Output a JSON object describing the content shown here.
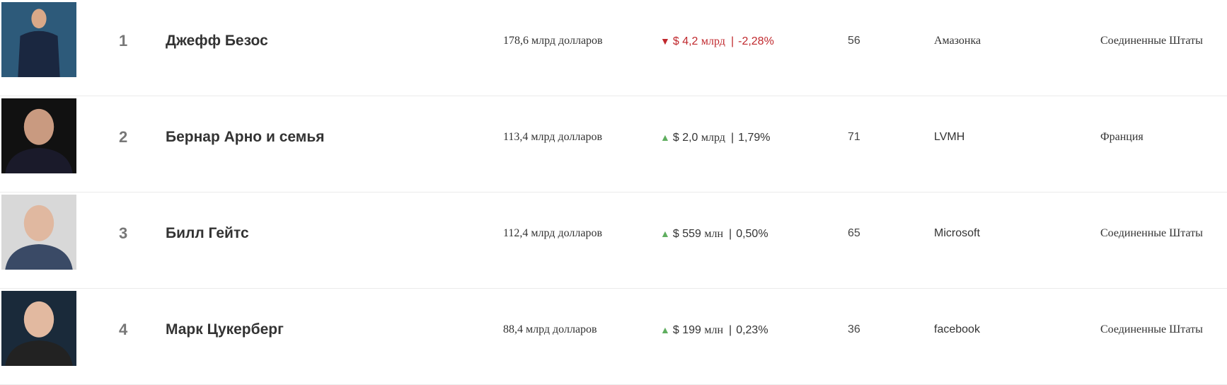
{
  "colors": {
    "down": "#c0282d",
    "up": "#5fae5f",
    "separator": "#ebebeb"
  },
  "rows": [
    {
      "rank": "1",
      "name": "Джефф Безос",
      "net_worth": "178,6 млрд долларов",
      "direction": "down",
      "arrow": "▼",
      "change_amount": "$ 4,2",
      "change_unit": "млрд",
      "change_percent": "-2,28%",
      "age": "56",
      "source": "Амазонка",
      "country": "Соединенные Штаты",
      "photo_bg": "#2d5a7a"
    },
    {
      "rank": "2",
      "name": "Бернар Арно и семья",
      "net_worth": "113,4 млрд долларов",
      "direction": "up",
      "arrow": "▲",
      "change_amount": "$ 2,0",
      "change_unit": "млрд",
      "change_percent": "1,79%",
      "age": "71",
      "source": "LVMH",
      "country": "Франция",
      "photo_bg": "#111111"
    },
    {
      "rank": "3",
      "name": "Билл Гейтс",
      "net_worth": "112,4 млрд долларов",
      "direction": "up",
      "arrow": "▲",
      "change_amount": "$ 559",
      "change_unit": "млн",
      "change_percent": "0,50%",
      "age": "65",
      "source": "Microsoft",
      "country": "Соединенные Штаты",
      "photo_bg": "#d8d8d8"
    },
    {
      "rank": "4",
      "name": "Марк Цукерберг",
      "net_worth": "88,4 млрд долларов",
      "direction": "up",
      "arrow": "▲",
      "change_amount": "$ 199",
      "change_unit": "млн",
      "change_percent": "0,23%",
      "age": "36",
      "source": "facebook",
      "country": "Соединенные Штаты",
      "photo_bg": "#1a2a3a"
    }
  ]
}
